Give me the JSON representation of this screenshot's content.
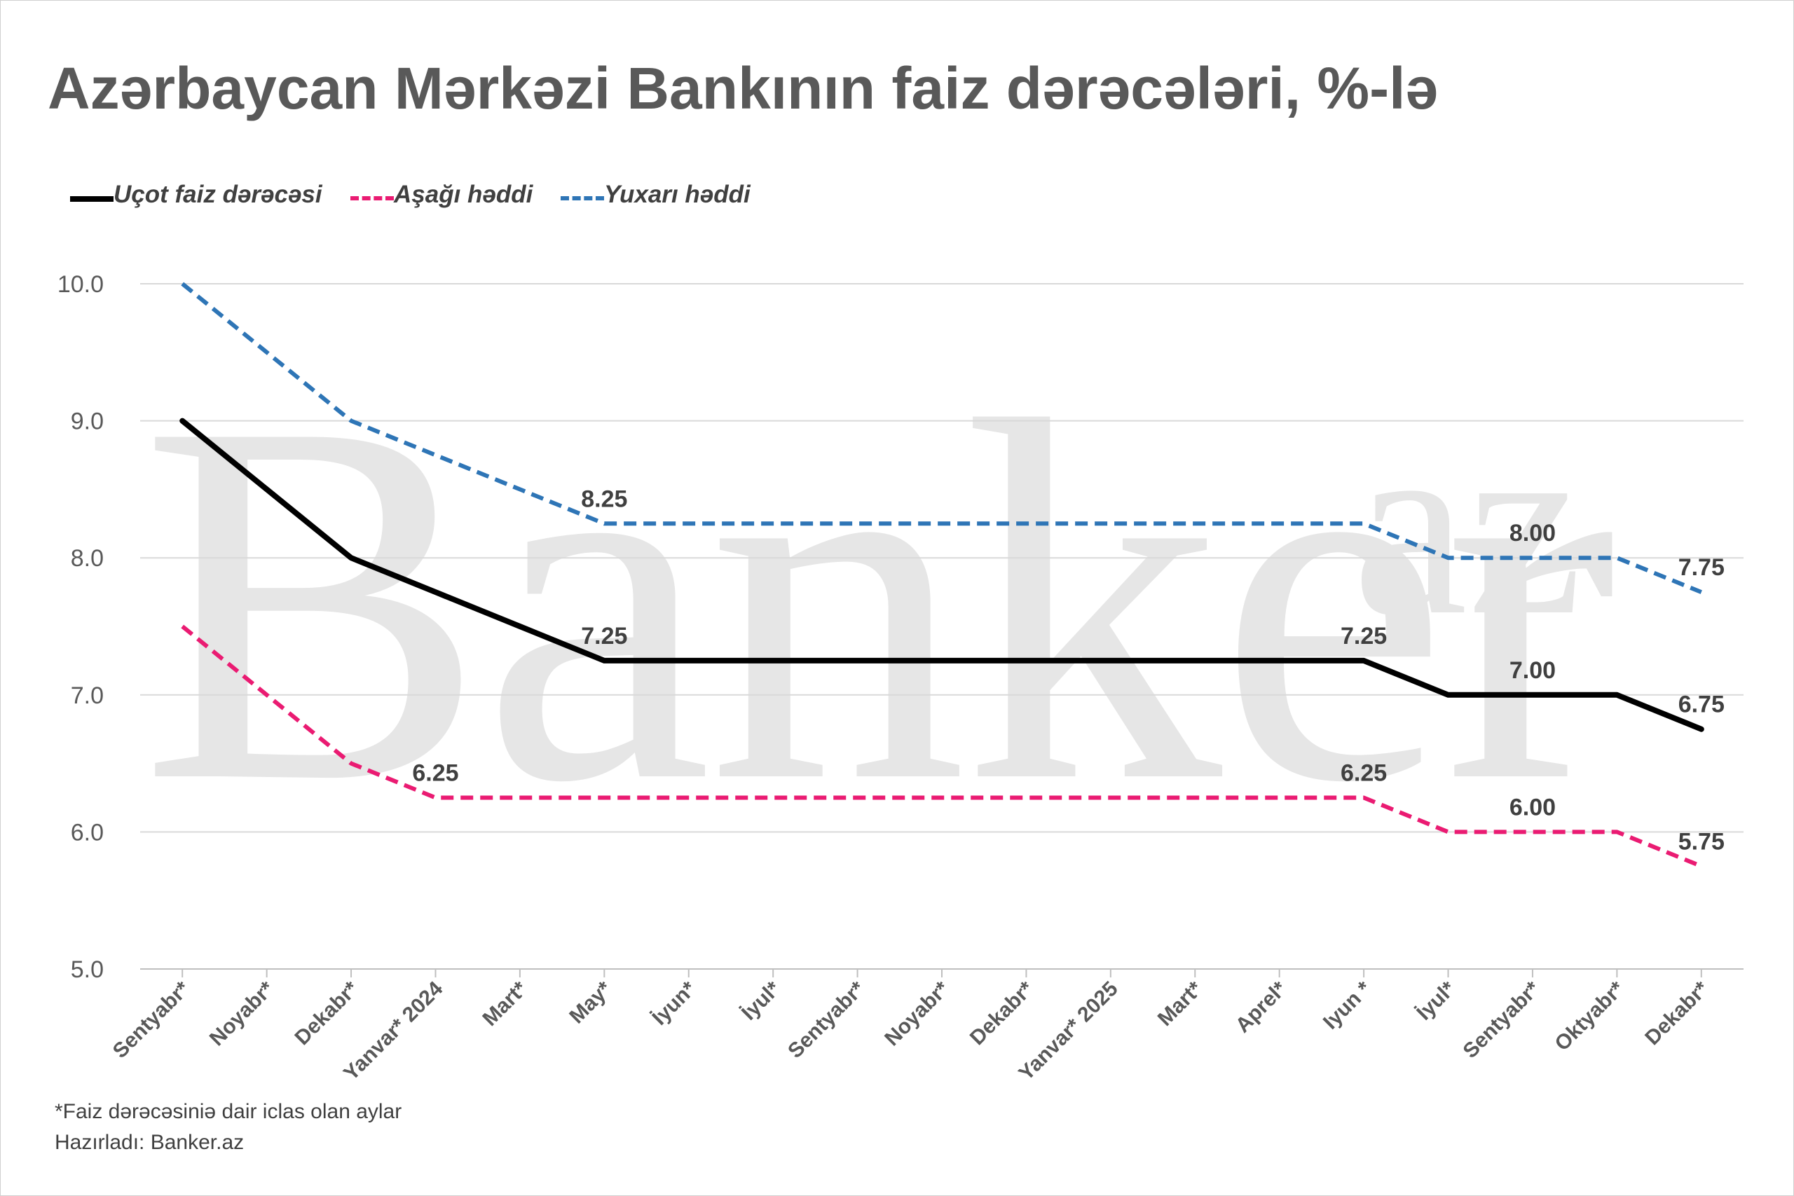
{
  "title": "Azərbaycan Mərkəzi Bankının faiz dərəcələri, %-lə",
  "watermark": {
    "word": "Banker",
    "sup": "az"
  },
  "legend": [
    {
      "label": "Uçot faiz dərəcəsi",
      "color": "#000000",
      "dash": "solid"
    },
    {
      "label": "Aşağı həddi",
      "color": "#ea1b72",
      "dash": "dashed"
    },
    {
      "label": "Yuxarı həddi",
      "color": "#2e75b6",
      "dash": "dashed"
    }
  ],
  "footnote": "*Faiz dərəcəsiniə dair iclas olan aylar",
  "credit": "Hazırladı: Banker.az",
  "chart_data": {
    "type": "line",
    "categories": [
      "Sentyabr*",
      "Noyabr*",
      "Dekabr*",
      "Yanvar* 2024",
      "Mart*",
      "May*",
      "İyun*",
      "İyul*",
      "Sentyabr*",
      "Noyabr*",
      "Dekabr*",
      "Yanvar* 2025",
      "Mart*",
      "Aprel*",
      "Iyun *",
      "İyul*",
      "Sentyabr*",
      "Oktyabr*",
      "Dekabr*"
    ],
    "ylim": [
      5.0,
      10.0
    ],
    "yticks": [
      "5.0",
      "6.0",
      "7.0",
      "8.0",
      "9.0",
      "10.0"
    ],
    "grid": true,
    "legend_position": "top-left",
    "series": [
      {
        "name": "Uçot faiz dərəcəsi",
        "color": "#000000",
        "dashed": false,
        "values": [
          9.0,
          8.5,
          8.0,
          7.75,
          7.5,
          7.25,
          7.25,
          7.25,
          7.25,
          7.25,
          7.25,
          7.25,
          7.25,
          7.25,
          7.25,
          7.0,
          7.0,
          7.0,
          6.75
        ]
      },
      {
        "name": "Aşağı həddi",
        "color": "#ea1b72",
        "dashed": true,
        "values": [
          7.5,
          7.0,
          6.5,
          6.25,
          6.25,
          6.25,
          6.25,
          6.25,
          6.25,
          6.25,
          6.25,
          6.25,
          6.25,
          6.25,
          6.25,
          6.0,
          6.0,
          6.0,
          5.75
        ]
      },
      {
        "name": "Yuxarı həddi",
        "color": "#2e75b6",
        "dashed": true,
        "values": [
          10.0,
          9.5,
          9.0,
          8.75,
          8.5,
          8.25,
          8.25,
          8.25,
          8.25,
          8.25,
          8.25,
          8.25,
          8.25,
          8.25,
          8.25,
          8.0,
          8.0,
          8.0,
          7.75
        ]
      }
    ],
    "data_labels": [
      {
        "series": 0,
        "index": 5,
        "text": "7.25"
      },
      {
        "series": 0,
        "index": 14,
        "text": "7.25"
      },
      {
        "series": 0,
        "index": 16,
        "text": "7.00"
      },
      {
        "series": 0,
        "index": 18,
        "text": "6.75"
      },
      {
        "series": 1,
        "index": 3,
        "text": "6.25"
      },
      {
        "series": 1,
        "index": 14,
        "text": "6.25"
      },
      {
        "series": 1,
        "index": 16,
        "text": "6.00"
      },
      {
        "series": 1,
        "index": 18,
        "text": "5.75"
      },
      {
        "series": 2,
        "index": 5,
        "text": "8.25"
      },
      {
        "series": 2,
        "index": 16,
        "text": "8.00"
      },
      {
        "series": 2,
        "index": 18,
        "text": "7.75"
      }
    ]
  }
}
